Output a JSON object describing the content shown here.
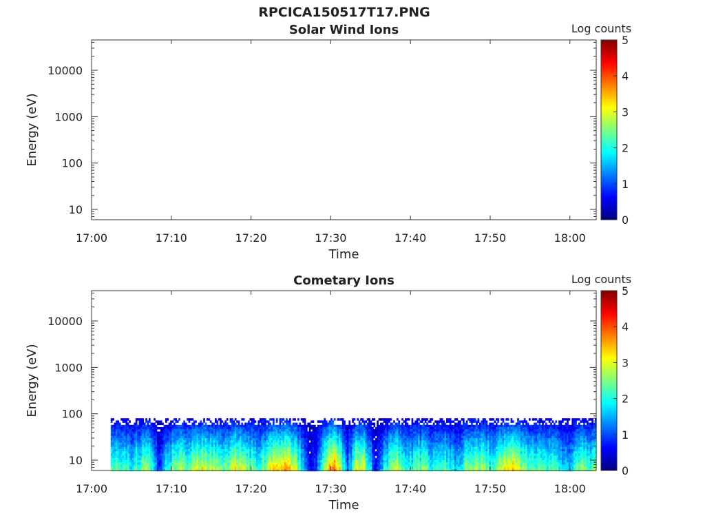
{
  "figure": {
    "title": "RPCICA150517T17.PNG"
  },
  "colormap": [
    "#00007f",
    "#0000ff",
    "#007fff",
    "#00ffff",
    "#7fff7f",
    "#ffff00",
    "#ff7f00",
    "#ff0000",
    "#7f0000"
  ],
  "chart_data": [
    {
      "type": "heatmap",
      "title": "Solar Wind Ions",
      "xlabel": "Time",
      "ylabel": "Energy (eV)",
      "x_ticks": [
        "17:00",
        "17:10",
        "17:20",
        "17:30",
        "17:40",
        "17:50",
        "18:00"
      ],
      "x_range_minutes": [
        0,
        63.3
      ],
      "y_scale": "log",
      "y_range": [
        6,
        45000
      ],
      "y_ticks": [
        "10",
        "100",
        "1000",
        "10000"
      ],
      "colorbar": {
        "label": "Log counts",
        "range": [
          0,
          5
        ],
        "ticks": [
          "0",
          "1",
          "2",
          "3",
          "4",
          "5"
        ]
      },
      "data": []
    },
    {
      "type": "heatmap",
      "title": "Cometary Ions",
      "xlabel": "Time",
      "ylabel": "Energy (eV)",
      "x_ticks": [
        "17:00",
        "17:10",
        "17:20",
        "17:30",
        "17:40",
        "17:50",
        "18:00"
      ],
      "x_range_minutes": [
        0,
        63.3
      ],
      "y_scale": "log",
      "y_range": [
        6,
        45000
      ],
      "y_ticks": [
        "10",
        "100",
        "1000",
        "10000"
      ],
      "colorbar": {
        "label": "Log counts",
        "range": [
          0,
          5
        ],
        "ticks": [
          "0",
          "1",
          "2",
          "3",
          "4",
          "5"
        ]
      },
      "data_extent": {
        "time_start_minutes": 2.4,
        "time_end_minutes": 63.3,
        "energy_min_eV": 6,
        "energy_max_eV": 80
      },
      "intensity_profile": [
        {
          "t": 2.4,
          "v": 2.0
        },
        {
          "t": 3.5,
          "v": 2.1
        },
        {
          "t": 5.0,
          "v": 1.8
        },
        {
          "t": 6.5,
          "v": 2.4
        },
        {
          "t": 7.5,
          "v": 2.0
        },
        {
          "t": 8.5,
          "v": 0.7
        },
        {
          "t": 9.2,
          "v": 1.5
        },
        {
          "t": 10.5,
          "v": 2.5
        },
        {
          "t": 12.0,
          "v": 2.2
        },
        {
          "t": 13.5,
          "v": 2.8
        },
        {
          "t": 15.0,
          "v": 2.5
        },
        {
          "t": 16.5,
          "v": 2.0
        },
        {
          "t": 18.0,
          "v": 2.9
        },
        {
          "t": 19.5,
          "v": 2.2
        },
        {
          "t": 21.0,
          "v": 2.0
        },
        {
          "t": 23.0,
          "v": 3.0
        },
        {
          "t": 24.3,
          "v": 3.3
        },
        {
          "t": 25.5,
          "v": 2.6
        },
        {
          "t": 26.5,
          "v": 1.4
        },
        {
          "t": 27.5,
          "v": 0.5
        },
        {
          "t": 28.5,
          "v": 1.2
        },
        {
          "t": 29.5,
          "v": 2.9
        },
        {
          "t": 30.3,
          "v": 3.5
        },
        {
          "t": 31.2,
          "v": 2.4
        },
        {
          "t": 32.0,
          "v": 1.0
        },
        {
          "t": 33.0,
          "v": 2.6
        },
        {
          "t": 34.0,
          "v": 2.9
        },
        {
          "t": 35.5,
          "v": 0.6
        },
        {
          "t": 36.5,
          "v": 1.6
        },
        {
          "t": 38.0,
          "v": 2.7
        },
        {
          "t": 39.5,
          "v": 1.8
        },
        {
          "t": 41.0,
          "v": 2.3
        },
        {
          "t": 42.5,
          "v": 1.9
        },
        {
          "t": 44.0,
          "v": 2.1
        },
        {
          "t": 45.5,
          "v": 1.5
        },
        {
          "t": 47.0,
          "v": 2.3
        },
        {
          "t": 48.5,
          "v": 2.5
        },
        {
          "t": 50.0,
          "v": 2.0
        },
        {
          "t": 51.5,
          "v": 2.7
        },
        {
          "t": 52.5,
          "v": 3.2
        },
        {
          "t": 53.5,
          "v": 2.6
        },
        {
          "t": 55.0,
          "v": 2.0
        },
        {
          "t": 56.5,
          "v": 2.1
        },
        {
          "t": 58.0,
          "v": 1.9
        },
        {
          "t": 59.5,
          "v": 1.5
        },
        {
          "t": 61.0,
          "v": 2.3
        },
        {
          "t": 62.5,
          "v": 2.0
        },
        {
          "t": 63.3,
          "v": 2.2
        }
      ]
    }
  ]
}
